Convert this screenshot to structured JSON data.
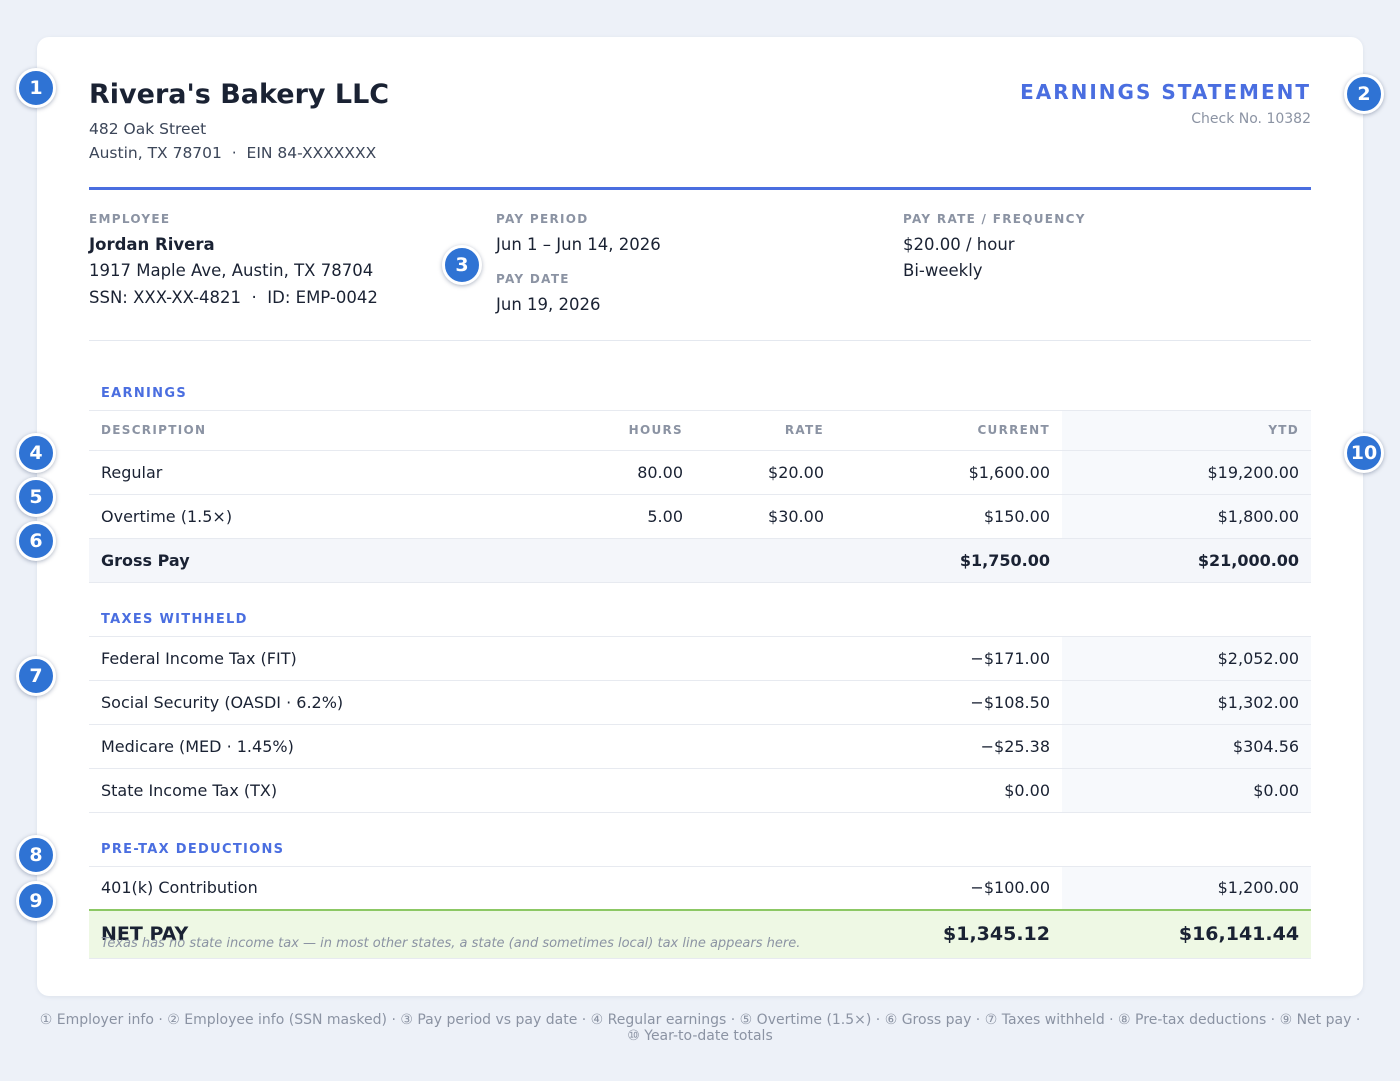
{
  "employer": {
    "name": "Rivera's Bakery LLC",
    "street": "482 Oak Street",
    "city_ein": "Austin, TX 78701  ·  EIN 84-XXXXXXX"
  },
  "statement": {
    "title": "EARNINGS STATEMENT",
    "check_no": "Check No. 10382"
  },
  "employee": {
    "label": "EMPLOYEE",
    "name": "Jordan Rivera",
    "address": "1917 Maple Ave, Austin, TX 78704",
    "ids": "SSN: XXX-XX-4821  ·  ID: EMP-0042"
  },
  "pay_period": {
    "label": "PAY PERIOD",
    "value": "Jun 1 – Jun 14, 2026"
  },
  "pay_date": {
    "label": "PAY DATE",
    "value": "Jun 19, 2026"
  },
  "pay_rate": {
    "label": "PAY RATE / FREQUENCY",
    "rate": "$20.00 / hour",
    "frequency": "Bi-weekly"
  },
  "earnings": {
    "section_label": "EARNINGS",
    "columns": {
      "description": "DESCRIPTION",
      "hours": "HOURS",
      "rate": "RATE",
      "current": "CURRENT",
      "ytd": "YTD"
    },
    "rows": [
      {
        "description": "Regular",
        "hours": "80.00",
        "rate": "$20.00",
        "current": "$1,600.00",
        "ytd": "$19,200.00"
      },
      {
        "description": "Overtime (1.5×)",
        "hours": "5.00",
        "rate": "$30.00",
        "current": "$150.00",
        "ytd": "$1,800.00"
      }
    ],
    "gross": {
      "label": "Gross Pay",
      "current": "$1,750.00",
      "ytd": "$21,000.00"
    }
  },
  "taxes": {
    "section_label": "TAXES WITHHELD",
    "rows": [
      {
        "description": "Federal Income Tax (FIT)",
        "current": "−$171.00",
        "ytd": "$2,052.00"
      },
      {
        "description": "Social Security (OASDI · 6.2%)",
        "current": "−$108.50",
        "ytd": "$1,302.00"
      },
      {
        "description": "Medicare (MED · 1.45%)",
        "current": "−$25.38",
        "ytd": "$304.56"
      },
      {
        "description": "State Income Tax (TX)",
        "current": "$0.00",
        "ytd": "$0.00"
      }
    ]
  },
  "deductions": {
    "section_label": "PRE-TAX DEDUCTIONS",
    "rows": [
      {
        "description": "401(k) Contribution",
        "current": "−$100.00",
        "ytd": "$1,200.00"
      }
    ]
  },
  "net_pay": {
    "label": "NET PAY",
    "current": "$1,345.12",
    "ytd": "$16,141.44"
  },
  "footnote": "Texas has no state income tax — in most other states, a state (and sometimes local) tax line appears here.",
  "markers": [
    "1",
    "2",
    "3",
    "4",
    "5",
    "6",
    "7",
    "8",
    "9",
    "10"
  ],
  "legend": {
    "line1": "① Employer info · ② Employee info (SSN masked) · ③ Pay period vs pay date · ④ Regular earnings · ⑤ Overtime (1.5×) · ⑥ Gross pay · ⑦ Taxes withheld · ⑧ Pre-tax deductions · ⑨ Net pay ·",
    "line2": "⑩ Year-to-date totals"
  },
  "colors": {
    "accent": "#4a6ee0",
    "marker": "#2f73d4",
    "net_bg": "#eef8e4",
    "net_border": "#8cc864"
  }
}
